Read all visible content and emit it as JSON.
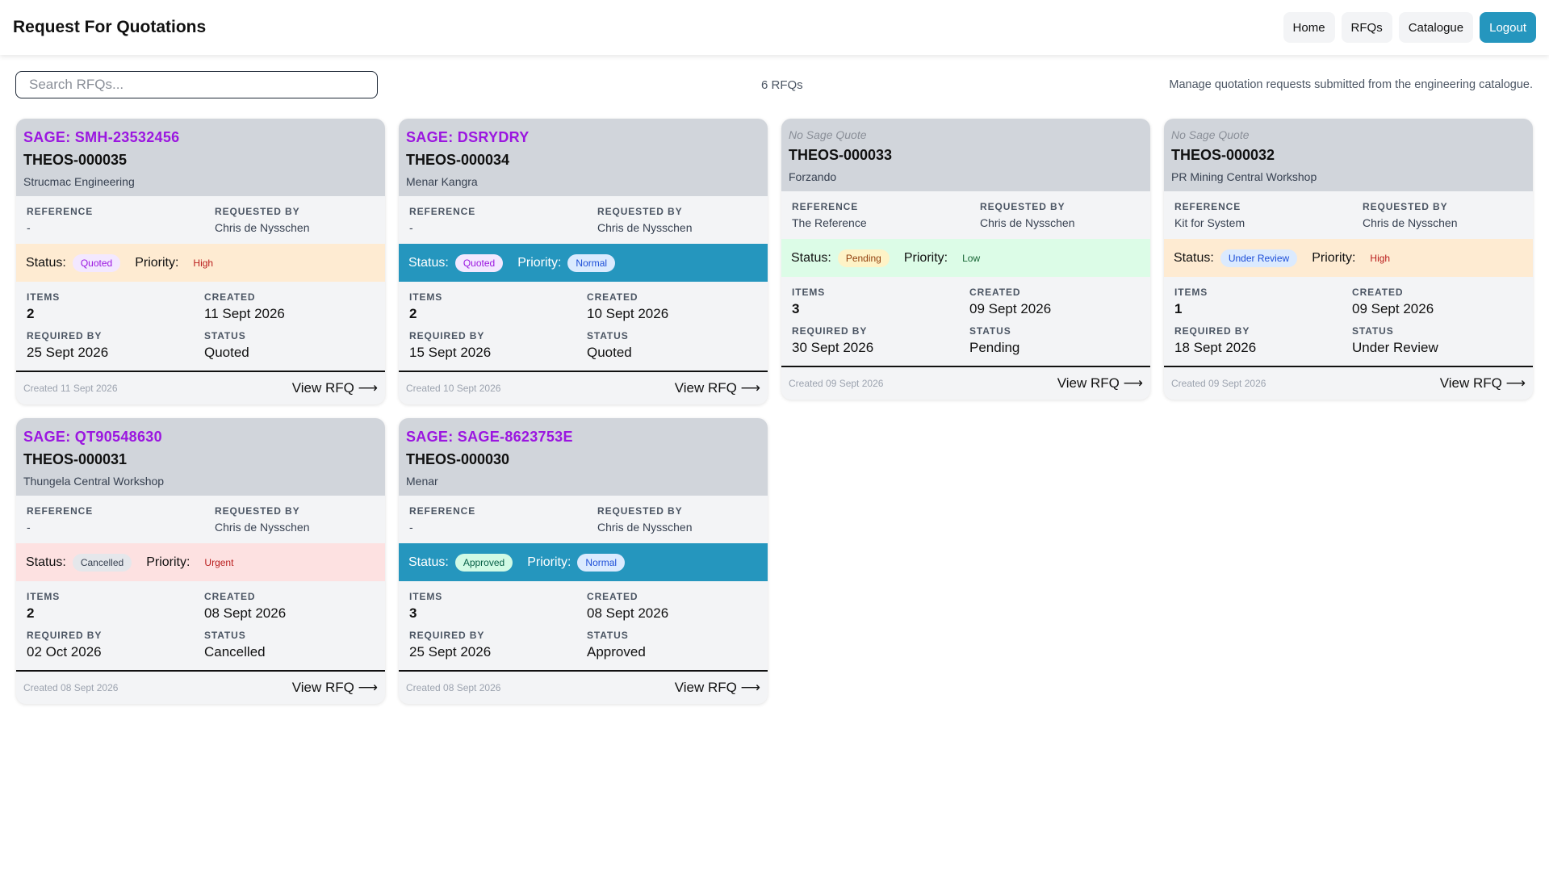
{
  "header": {
    "title": "Request For Quotations"
  },
  "nav": {
    "home": "Home",
    "rfqs": "RFQs",
    "catalogue": "Catalogue",
    "logout": "Logout"
  },
  "toolbar": {
    "search_placeholder": "Search RFQs...",
    "count": "6 RFQs",
    "subtitle": "Manage quotation requests submitted from the engineering catalogue."
  },
  "labels": {
    "reference": "REFERENCE",
    "requested_by": "REQUESTED BY",
    "status": "Status:",
    "priority": "Priority:",
    "items": "ITEMS",
    "created": "CREATED",
    "required_by": "REQUIRED BY",
    "status_cap": "STATUS",
    "view": "View RFQ ⟶"
  },
  "colors": {
    "accent": "#2596be",
    "sage": "#9b16e0",
    "card": "#f3f4f6",
    "card_head": "#d1d5db",
    "strip_orange": "#feebd2",
    "strip_blue": "#2596be",
    "strip_green": "#dcfce7",
    "strip_red": "#fde1e1"
  },
  "rfqs": [
    {
      "sage": "SAGE: SMH-23532456",
      "rfq": "THEOS-000035",
      "client": "Strucmac Engineering",
      "reference": "-",
      "requested_by": "Chris de Nysschen",
      "status": "Quoted",
      "priority": "High",
      "items": "2",
      "created": "11 Sept 2026",
      "required_by": "25 Sept 2026",
      "footer": "Created 11 Sept 2026",
      "strip": "orange",
      "status_style": "purple",
      "priority_style": "text-red"
    },
    {
      "sage": "SAGE: DSRYDRY",
      "rfq": "THEOS-000034",
      "client": "Menar Kangra",
      "reference": "-",
      "requested_by": "Chris de Nysschen",
      "status": "Quoted",
      "priority": "Normal",
      "items": "2",
      "created": "10 Sept 2026",
      "required_by": "15 Sept 2026",
      "footer": "Created 10 Sept 2026",
      "strip": "blue",
      "status_style": "purple",
      "priority_style": "pill-blue"
    },
    {
      "sage": "No Sage Quote",
      "rfq": "THEOS-000033",
      "client": "Forzando",
      "reference": "The Reference",
      "requested_by": "Chris de Nysschen",
      "status": "Pending",
      "priority": "Low",
      "items": "3",
      "created": "09 Sept 2026",
      "required_by": "30 Sept 2026",
      "footer": "Created 09 Sept 2026",
      "strip": "green",
      "status_style": "yellow",
      "priority_style": "text-green"
    },
    {
      "sage": "No Sage Quote",
      "rfq": "THEOS-000032",
      "client": "PR Mining Central Workshop",
      "reference": "Kit for System",
      "requested_by": "Chris de Nysschen",
      "status": "Under Review",
      "priority": "High",
      "items": "1",
      "created": "09 Sept 2026",
      "required_by": "18 Sept 2026",
      "footer": "Created 09 Sept 2026",
      "strip": "orange",
      "status_style": "blue",
      "priority_style": "text-red"
    },
    {
      "sage": "SAGE: QT90548630",
      "rfq": "THEOS-000031",
      "client": "Thungela Central Workshop",
      "reference": "-",
      "requested_by": "Chris de Nysschen",
      "status": "Cancelled",
      "priority": "Urgent",
      "items": "2",
      "created": "08 Sept 2026",
      "required_by": "02 Oct 2026",
      "footer": "Created 08 Sept 2026",
      "strip": "red",
      "status_style": "gray",
      "priority_style": "text-red"
    },
    {
      "sage": "SAGE: SAGE-8623753E",
      "rfq": "THEOS-000030",
      "client": "Menar",
      "reference": "-",
      "requested_by": "Chris de Nysschen",
      "status": "Approved",
      "priority": "Normal",
      "items": "3",
      "created": "08 Sept 2026",
      "required_by": "25 Sept 2026",
      "footer": "Created 08 Sept 2026",
      "strip": "blue",
      "status_style": "green",
      "priority_style": "pill-blue"
    }
  ]
}
